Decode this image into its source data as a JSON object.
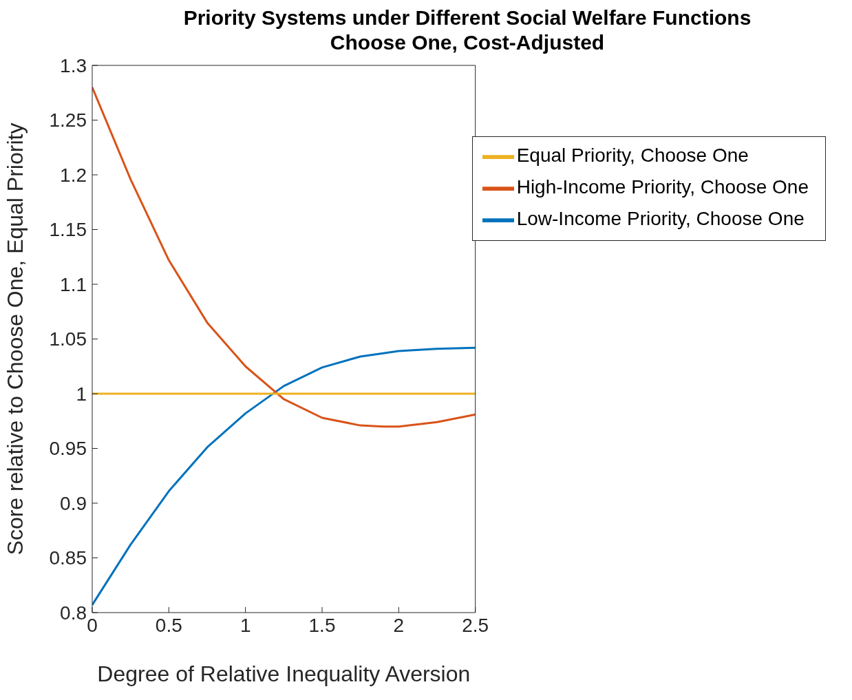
{
  "chart_data": {
    "type": "line",
    "title": "Priority Systems under Different Social Welfare Functions",
    "subtitle": "Choose One, Cost-Adjusted",
    "xlabel": "Degree of Relative Inequality Aversion",
    "ylabel": "Score relative to Choose One, Equal Priority",
    "x": [
      0,
      0.25,
      0.5,
      0.75,
      1,
      1.25,
      1.5,
      1.75,
      1.9,
      2,
      2.25,
      2.5
    ],
    "series": [
      {
        "name": "Low-Income Priority, Choose One",
        "color": "#0072bd",
        "values": [
          0.807,
          0.862,
          0.911,
          0.951,
          0.982,
          1.007,
          1.024,
          1.034,
          1.037,
          1.039,
          1.041,
          1.042
        ]
      },
      {
        "name": "High-Income Priority, Choose One",
        "color": "#d95319",
        "values": [
          1.28,
          1.196,
          1.122,
          1.065,
          1.025,
          0.995,
          0.978,
          0.971,
          0.97,
          0.97,
          0.974,
          0.981
        ]
      },
      {
        "name": "Equal Priority, Choose One",
        "color": "#edb120",
        "values": [
          1,
          1,
          1,
          1,
          1,
          1,
          1,
          1,
          1,
          1,
          1,
          1
        ]
      }
    ],
    "xlim": [
      0,
      2.5
    ],
    "xticks": [
      0,
      0.5,
      1,
      1.5,
      2,
      2.5
    ],
    "ylim": [
      0.8,
      1.3
    ],
    "yticks": [
      0.8,
      0.85,
      0.9,
      0.95,
      1,
      1.05,
      1.1,
      1.15,
      1.2,
      1.25,
      1.3
    ],
    "legend": "top right",
    "marker": "none",
    "line_style": "solid"
  }
}
